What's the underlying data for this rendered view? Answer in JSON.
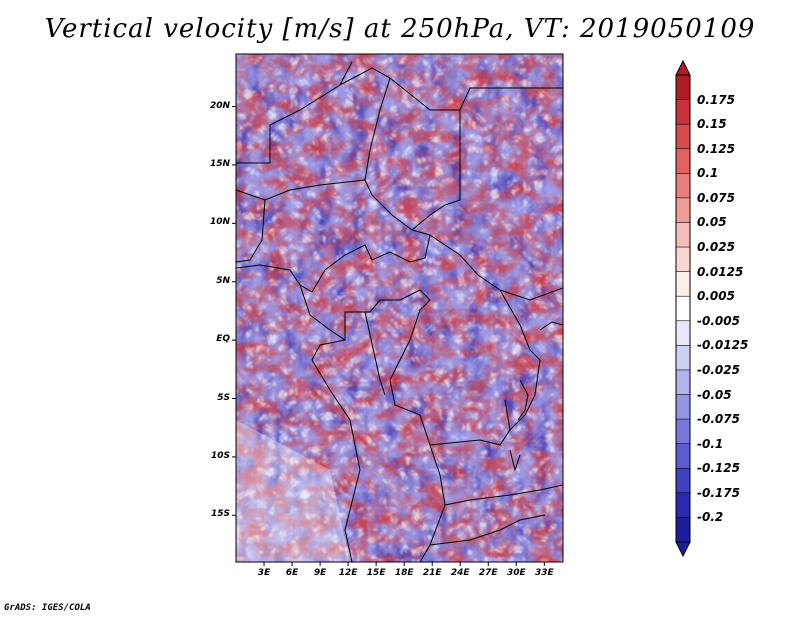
{
  "title": "Vertical velocity [m/s] at 250hPa, VT: 2019050109",
  "credit": "GrADS: IGES/COLA",
  "map": {
    "y_axis_labels": [
      "20N",
      "15N",
      "10N",
      "5N",
      "EQ",
      "5S",
      "10S",
      "15S"
    ],
    "x_axis_labels": [
      "3E",
      "6E",
      "9E",
      "12E",
      "15E",
      "18E",
      "21E",
      "24E",
      "27E",
      "30E",
      "33E"
    ],
    "lat_range": [
      -19,
      24.5
    ],
    "lon_range": [
      0,
      35
    ]
  },
  "colorbar": {
    "labels": [
      "0.175",
      "0.15",
      "0.125",
      "0.1",
      "0.075",
      "0.05",
      "0.025",
      "0.0125",
      "0.005",
      "-0.005",
      "-0.0125",
      "-0.025",
      "-0.05",
      "-0.075",
      "-0.1",
      "-0.125",
      "-0.175",
      "-0.2"
    ],
    "colors": [
      "#b01c24",
      "#c8323a",
      "#d84a4e",
      "#e26262",
      "#ea7e7c",
      "#f09c98",
      "#f6bcb8",
      "#fad6d2",
      "#fdeeec",
      "#ffffff",
      "#e8e8fa",
      "#cfcff4",
      "#b2b2ee",
      "#9494e4",
      "#7878da",
      "#5c5cce",
      "#4040c0",
      "#2a2ab0",
      "#1e1e9c"
    ]
  }
}
